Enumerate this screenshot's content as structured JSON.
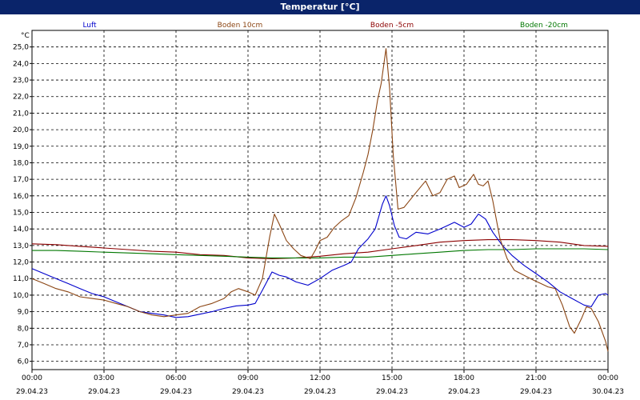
{
  "window": {
    "title": "Temperatur [°C]"
  },
  "chart_data": {
    "type": "line",
    "ylabel": "°C",
    "ylim": [
      5.5,
      26.0
    ],
    "y_ticks": [
      "6,0",
      "7,0",
      "8,0",
      "9,0",
      "10,0",
      "11,0",
      "12,0",
      "13,0",
      "14,0",
      "15,0",
      "16,0",
      "17,0",
      "18,0",
      "19,0",
      "20,0",
      "21,0",
      "22,0",
      "23,0",
      "24,0",
      "25,0"
    ],
    "x_ticks": [
      {
        "time": "00:00",
        "date": "29.04.23"
      },
      {
        "time": "03:00",
        "date": "29.04.23"
      },
      {
        "time": "06:00",
        "date": "29.04.23"
      },
      {
        "time": "09:00",
        "date": "29.04.23"
      },
      {
        "time": "12:00",
        "date": "29.04.23"
      },
      {
        "time": "15:00",
        "date": "29.04.23"
      },
      {
        "time": "18:00",
        "date": "29.04.23"
      },
      {
        "time": "21:00",
        "date": "29.04.23"
      },
      {
        "time": "00:00",
        "date": "30.04.23"
      }
    ],
    "x_unit": "hours",
    "x_range": [
      0,
      24
    ],
    "grid": true,
    "legend_placement": "top",
    "series": [
      {
        "name": "Luft",
        "color": "#0000cc",
        "points": [
          [
            0,
            11.6
          ],
          [
            0.5,
            11.3
          ],
          [
            1,
            11.0
          ],
          [
            1.5,
            10.7
          ],
          [
            2,
            10.4
          ],
          [
            2.5,
            10.1
          ],
          [
            3,
            9.9
          ],
          [
            3.5,
            9.6
          ],
          [
            4,
            9.3
          ],
          [
            4.5,
            9.0
          ],
          [
            5,
            8.9
          ],
          [
            5.5,
            8.8
          ],
          [
            6,
            8.65
          ],
          [
            6.5,
            8.7
          ],
          [
            7,
            8.85
          ],
          [
            7.5,
            9.0
          ],
          [
            8,
            9.2
          ],
          [
            8.5,
            9.35
          ],
          [
            9,
            9.4
          ],
          [
            9.3,
            9.5
          ],
          [
            9.6,
            10.3
          ],
          [
            10,
            11.4
          ],
          [
            10.3,
            11.2
          ],
          [
            10.6,
            11.1
          ],
          [
            11,
            10.8
          ],
          [
            11.5,
            10.6
          ],
          [
            12,
            11.0
          ],
          [
            12.5,
            11.5
          ],
          [
            13,
            11.8
          ],
          [
            13.3,
            12.0
          ],
          [
            13.6,
            12.8
          ],
          [
            14,
            13.4
          ],
          [
            14.3,
            14.0
          ],
          [
            14.6,
            15.5
          ],
          [
            14.75,
            16.0
          ],
          [
            14.9,
            15.4
          ],
          [
            15.1,
            14.2
          ],
          [
            15.3,
            13.5
          ],
          [
            15.6,
            13.4
          ],
          [
            16,
            13.8
          ],
          [
            16.5,
            13.7
          ],
          [
            17,
            14.0
          ],
          [
            17.3,
            14.2
          ],
          [
            17.6,
            14.4
          ],
          [
            18,
            14.1
          ],
          [
            18.3,
            14.3
          ],
          [
            18.6,
            14.9
          ],
          [
            18.9,
            14.6
          ],
          [
            19.2,
            13.8
          ],
          [
            19.6,
            13.0
          ],
          [
            20,
            12.4
          ],
          [
            20.5,
            11.8
          ],
          [
            21,
            11.3
          ],
          [
            21.5,
            10.8
          ],
          [
            22,
            10.2
          ],
          [
            22.5,
            9.8
          ],
          [
            23,
            9.4
          ],
          [
            23.3,
            9.3
          ],
          [
            23.6,
            10.0
          ],
          [
            23.9,
            10.1
          ],
          [
            24,
            10.0
          ]
        ]
      },
      {
        "name": "Boden 10cm",
        "color": "#8b4513",
        "points": [
          [
            0,
            11.0
          ],
          [
            0.5,
            10.7
          ],
          [
            1,
            10.4
          ],
          [
            1.5,
            10.2
          ],
          [
            2,
            9.9
          ],
          [
            2.5,
            9.8
          ],
          [
            3,
            9.7
          ],
          [
            3.5,
            9.5
          ],
          [
            4,
            9.3
          ],
          [
            4.5,
            9.0
          ],
          [
            5,
            8.8
          ],
          [
            5.5,
            8.7
          ],
          [
            6,
            8.8
          ],
          [
            6.5,
            8.9
          ],
          [
            7,
            9.3
          ],
          [
            7.5,
            9.5
          ],
          [
            8,
            9.8
          ],
          [
            8.3,
            10.2
          ],
          [
            8.6,
            10.4
          ],
          [
            9,
            10.2
          ],
          [
            9.3,
            10.0
          ],
          [
            9.6,
            11.0
          ],
          [
            9.9,
            13.5
          ],
          [
            10.1,
            14.9
          ],
          [
            10.3,
            14.3
          ],
          [
            10.6,
            13.3
          ],
          [
            10.9,
            12.8
          ],
          [
            11.2,
            12.4
          ],
          [
            11.6,
            12.2
          ],
          [
            11.8,
            12.7
          ],
          [
            12,
            13.3
          ],
          [
            12.3,
            13.5
          ],
          [
            12.6,
            14.1
          ],
          [
            12.9,
            14.5
          ],
          [
            13.2,
            14.8
          ],
          [
            13.5,
            15.9
          ],
          [
            13.8,
            17.4
          ],
          [
            14.0,
            18.5
          ],
          [
            14.2,
            20.0
          ],
          [
            14.4,
            21.8
          ],
          [
            14.55,
            22.8
          ],
          [
            14.75,
            24.9
          ],
          [
            14.9,
            22.5
          ],
          [
            15.05,
            18.5
          ],
          [
            15.25,
            15.2
          ],
          [
            15.5,
            15.3
          ],
          [
            16,
            16.2
          ],
          [
            16.4,
            16.9
          ],
          [
            16.7,
            16.0
          ],
          [
            17,
            16.2
          ],
          [
            17.3,
            17.0
          ],
          [
            17.6,
            17.2
          ],
          [
            17.8,
            16.5
          ],
          [
            18.1,
            16.7
          ],
          [
            18.4,
            17.3
          ],
          [
            18.6,
            16.7
          ],
          [
            18.8,
            16.6
          ],
          [
            19.0,
            16.9
          ],
          [
            19.2,
            15.7
          ],
          [
            19.5,
            13.4
          ],
          [
            19.8,
            12.2
          ],
          [
            20.1,
            11.5
          ],
          [
            20.5,
            11.2
          ],
          [
            20.9,
            10.9
          ],
          [
            21.2,
            10.7
          ],
          [
            21.5,
            10.5
          ],
          [
            21.8,
            10.4
          ],
          [
            22.1,
            9.4
          ],
          [
            22.4,
            8.1
          ],
          [
            22.6,
            7.7
          ],
          [
            22.9,
            8.6
          ],
          [
            23.1,
            9.3
          ],
          [
            23.3,
            9.2
          ],
          [
            23.6,
            8.4
          ],
          [
            23.9,
            7.2
          ],
          [
            24,
            6.6
          ]
        ]
      },
      {
        "name": "Boden -5cm",
        "color": "#8b0000",
        "points": [
          [
            0,
            13.1
          ],
          [
            1,
            13.05
          ],
          [
            2,
            12.95
          ],
          [
            3,
            12.85
          ],
          [
            4,
            12.75
          ],
          [
            5,
            12.65
          ],
          [
            6,
            12.6
          ],
          [
            7,
            12.45
          ],
          [
            8,
            12.4
          ],
          [
            9,
            12.25
          ],
          [
            10,
            12.2
          ],
          [
            11,
            12.25
          ],
          [
            12,
            12.35
          ],
          [
            13,
            12.5
          ],
          [
            14,
            12.6
          ],
          [
            15,
            12.8
          ],
          [
            16,
            13.0
          ],
          [
            17,
            13.2
          ],
          [
            18,
            13.3
          ],
          [
            19,
            13.35
          ],
          [
            20,
            13.35
          ],
          [
            21,
            13.3
          ],
          [
            22,
            13.2
          ],
          [
            23,
            13.0
          ],
          [
            24,
            12.95
          ]
        ]
      },
      {
        "name": "Boden -20cm",
        "color": "#007700",
        "points": [
          [
            0,
            12.7
          ],
          [
            1,
            12.7
          ],
          [
            2,
            12.65
          ],
          [
            3,
            12.6
          ],
          [
            4,
            12.55
          ],
          [
            5,
            12.5
          ],
          [
            6,
            12.45
          ],
          [
            7,
            12.4
          ],
          [
            8,
            12.35
          ],
          [
            9,
            12.3
          ],
          [
            10,
            12.25
          ],
          [
            11,
            12.25
          ],
          [
            12,
            12.25
          ],
          [
            13,
            12.3
          ],
          [
            14,
            12.3
          ],
          [
            15,
            12.4
          ],
          [
            16,
            12.5
          ],
          [
            17,
            12.6
          ],
          [
            18,
            12.7
          ],
          [
            19,
            12.75
          ],
          [
            20,
            12.75
          ],
          [
            21,
            12.8
          ],
          [
            22,
            12.8
          ],
          [
            23,
            12.8
          ],
          [
            24,
            12.75
          ]
        ]
      }
    ]
  }
}
